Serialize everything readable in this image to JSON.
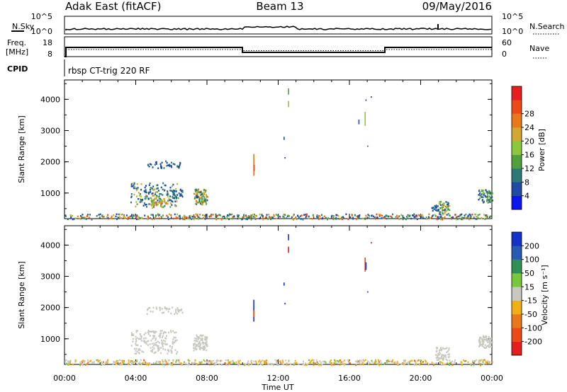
{
  "header": {
    "station": "Adak East (fitACF)",
    "beam": "Beam 13",
    "date": "09/May/2016"
  },
  "top_panel": {
    "left_label": "N.Sky",
    "left_ticks": [
      "10^5",
      "10^0"
    ],
    "right_ticks": [
      "10^5",
      "10^0"
    ],
    "right_label": "N.Search"
  },
  "freq_panel": {
    "left_label_1": "Freq.",
    "left_label_2": "[MHz]",
    "left_ticks": [
      "18",
      "8"
    ],
    "right_ticks": [
      "60",
      "0"
    ],
    "right_label": "Nave"
  },
  "cpid": {
    "label": "CPID",
    "program": "rbsp CT-trig 220 RF"
  },
  "chart_data": [
    {
      "type": "scatter",
      "name": "power-panel",
      "ylabel": "Slant Range [km]",
      "ylim": [
        180,
        4620
      ],
      "yticks": [
        "1000",
        "2000",
        "3000",
        "4000"
      ],
      "xlim": [
        0,
        24
      ],
      "colorbar": {
        "label": "Power [dB]",
        "ticks": [
          "4",
          "8",
          "12",
          "16",
          "20",
          "24",
          "28"
        ],
        "colors": [
          "#0a18ee",
          "#1f4aa5",
          "#2a7a78",
          "#50a040",
          "#8cc83c",
          "#d2a732",
          "#e8781a",
          "#ee4a18",
          "#e61e1e"
        ]
      },
      "clusters": [
        {
          "t0": 3.7,
          "t1": 6.3,
          "r0": 550,
          "r1": 1350,
          "n": 170,
          "palette": [
            1,
            1,
            1,
            2,
            2,
            3,
            4,
            5
          ]
        },
        {
          "t0": 4.8,
          "t1": 5.8,
          "r0": 620,
          "r1": 900,
          "n": 40,
          "palette": [
            3,
            4,
            5,
            5,
            6
          ]
        },
        {
          "t0": 6.0,
          "t1": 6.6,
          "r0": 850,
          "r1": 1150,
          "n": 30,
          "palette": [
            1,
            1,
            2,
            3
          ]
        },
        {
          "t0": 7.2,
          "t1": 8.0,
          "r0": 650,
          "r1": 1150,
          "n": 100,
          "palette": [
            1,
            2,
            3,
            4,
            5,
            6
          ]
        },
        {
          "t0": 4.6,
          "t1": 6.6,
          "r0": 1820,
          "r1": 2050,
          "n": 40,
          "palette": [
            1,
            1,
            2
          ]
        },
        {
          "t0": 21.0,
          "t1": 21.6,
          "r0": 330,
          "r1": 750,
          "n": 60,
          "palette": [
            1,
            2,
            3,
            4,
            5,
            6
          ]
        },
        {
          "t0": 20.6,
          "t1": 21.0,
          "r0": 450,
          "r1": 650,
          "n": 20,
          "palette": [
            1,
            1,
            2
          ]
        },
        {
          "t0": 23.2,
          "t1": 24.0,
          "r0": 720,
          "r1": 1130,
          "n": 70,
          "palette": [
            1,
            1,
            2,
            3,
            4
          ]
        },
        {
          "t0": 0.0,
          "t1": 24.0,
          "r0": 180,
          "r1": 350,
          "n": 520,
          "palette": [
            1,
            1,
            2,
            2,
            3,
            4,
            5,
            6,
            7
          ]
        }
      ],
      "streaks": [
        {
          "t": 10.6,
          "r0": 1550,
          "r1": 2250,
          "c": 6
        },
        {
          "t": 10.62,
          "r0": 1700,
          "r1": 1900,
          "c": 7
        },
        {
          "t": 12.55,
          "r0": 3750,
          "r1": 3950,
          "c": 4
        },
        {
          "t": 12.55,
          "r0": 4150,
          "r1": 4350,
          "c": 3
        },
        {
          "t": 16.85,
          "r0": 3150,
          "r1": 3600,
          "c": 4
        },
        {
          "t": 16.5,
          "r0": 3200,
          "r1": 3350,
          "c": 1
        },
        {
          "t": 17.2,
          "r0": 4050,
          "r1": 4100,
          "c": 1
        },
        {
          "t": 16.9,
          "r0": 3950,
          "r1": 4000,
          "c": 1
        },
        {
          "t": 12.3,
          "r0": 2700,
          "r1": 2800,
          "c": 1
        },
        {
          "t": 12.35,
          "r0": 2100,
          "r1": 2150,
          "c": 1
        },
        {
          "t": 17.0,
          "r0": 2480,
          "r1": 2520,
          "c": 1
        }
      ]
    },
    {
      "type": "scatter",
      "name": "velocity-panel",
      "ylabel": "Slant Range [km]",
      "xlabel": "Time UT",
      "ylim": [
        180,
        4620
      ],
      "yticks": [
        "1000",
        "2000",
        "3000",
        "4000"
      ],
      "xlim": [
        0,
        24
      ],
      "xticks": [
        "00:00",
        "04:00",
        "08:00",
        "12:00",
        "16:00",
        "20:00",
        "00:00"
      ],
      "colorbar": {
        "label": "Velocity [m s⁻¹]",
        "ticks": [
          "-200",
          "-100",
          "-50",
          "-15",
          "15",
          "50",
          "100",
          "200"
        ],
        "colors": [
          "#e61e1e",
          "#ee4a18",
          "#e8781a",
          "#f0b014",
          "#c8c8c0",
          "#78c83c",
          "#2f8f55",
          "#285ab4",
          "#1432c8"
        ]
      },
      "clusters": [
        {
          "t0": 3.7,
          "t1": 6.3,
          "r0": 550,
          "r1": 1300,
          "n": 170,
          "palette": [
            4,
            4,
            4,
            4,
            4,
            4
          ]
        },
        {
          "t0": 7.2,
          "t1": 8.0,
          "r0": 650,
          "r1": 1150,
          "n": 90,
          "palette": [
            4,
            4,
            4,
            4
          ]
        },
        {
          "t0": 4.6,
          "t1": 6.6,
          "r0": 1820,
          "r1": 2050,
          "n": 40,
          "palette": [
            4,
            4,
            4
          ]
        },
        {
          "t0": 20.8,
          "t1": 21.6,
          "r0": 330,
          "r1": 750,
          "n": 60,
          "palette": [
            4,
            4,
            4,
            4
          ]
        },
        {
          "t0": 23.2,
          "t1": 24.0,
          "r0": 720,
          "r1": 1130,
          "n": 70,
          "palette": [
            4,
            4,
            4
          ]
        },
        {
          "t0": 0.0,
          "t1": 24.0,
          "r0": 180,
          "r1": 350,
          "n": 520,
          "palette": [
            4,
            4,
            4,
            3,
            3,
            5,
            2
          ]
        }
      ],
      "streaks": [
        {
          "t": 10.6,
          "r0": 1550,
          "r1": 2250,
          "c": 8
        },
        {
          "t": 10.62,
          "r0": 1700,
          "r1": 1900,
          "c": 2
        },
        {
          "t": 12.55,
          "r0": 3750,
          "r1": 3950,
          "c": 0
        },
        {
          "t": 12.55,
          "r0": 4150,
          "r1": 4350,
          "c": 8
        },
        {
          "t": 16.85,
          "r0": 3150,
          "r1": 3600,
          "c": 1
        },
        {
          "t": 16.9,
          "r0": 3200,
          "r1": 3450,
          "c": 8
        },
        {
          "t": 17.2,
          "r0": 4050,
          "r1": 4100,
          "c": 0
        },
        {
          "t": 12.3,
          "r0": 2700,
          "r1": 2800,
          "c": 8
        },
        {
          "t": 12.35,
          "r0": 2100,
          "r1": 2150,
          "c": 8
        },
        {
          "t": 17.0,
          "r0": 2480,
          "r1": 2520,
          "c": 8
        }
      ]
    }
  ]
}
